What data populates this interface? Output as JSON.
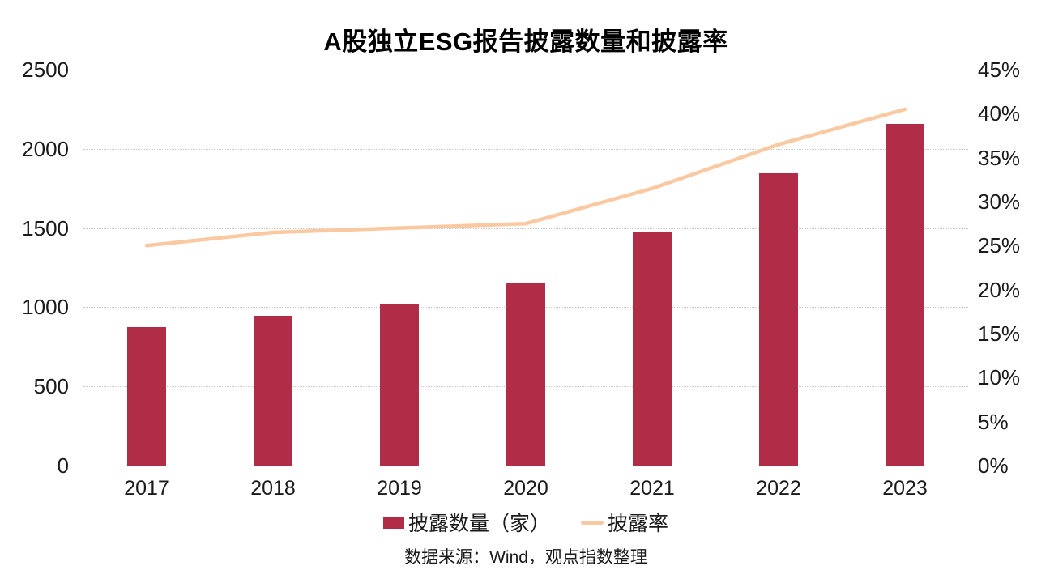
{
  "page": {
    "background": "#FFFFFF",
    "text_color": "#1A1A1A"
  },
  "chart_data": {
    "type": "combo",
    "title": "A股独立ESG报告披露数量和披露率",
    "categories": [
      "2017",
      "2018",
      "2019",
      "2020",
      "2021",
      "2022",
      "2023"
    ],
    "series": [
      {
        "name": "披露数量（家）",
        "type": "bar",
        "axis": "left",
        "color": "#B12C46",
        "values": [
          875,
          945,
          1020,
          1150,
          1470,
          1845,
          2160
        ]
      },
      {
        "name": "披露率",
        "type": "line",
        "axis": "right",
        "color": "#FBC9A1",
        "values": [
          25,
          26.5,
          27,
          27.5,
          31.5,
          36.5,
          40.5
        ]
      }
    ],
    "left_axis": {
      "min": 0,
      "max": 2500,
      "step": 500,
      "ticks": [
        "0",
        "500",
        "1000",
        "1500",
        "2000",
        "2500"
      ]
    },
    "right_axis": {
      "min": 0,
      "max": 45,
      "step": 5,
      "suffix": "%",
      "ticks": [
        "0%",
        "5%",
        "10%",
        "15%",
        "20%",
        "25%",
        "30%",
        "35%",
        "40%",
        "45%"
      ]
    },
    "grid": {
      "horizontal": true,
      "style": "dotted",
      "color": "#C9C9C9"
    },
    "legend_position": "bottom",
    "source": "数据来源：Wind，观点指数整理"
  }
}
